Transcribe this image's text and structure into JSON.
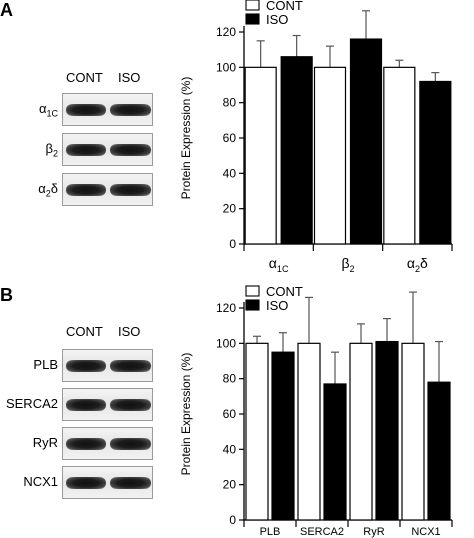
{
  "panels": [
    {
      "letter": "A",
      "blot": {
        "lanes": [
          "CONT",
          "ISO"
        ],
        "proteins": [
          {
            "base": "α",
            "sub": "1C"
          },
          {
            "base": "β",
            "sub": "2"
          },
          {
            "base": "α",
            "sub": "2",
            "post": "δ"
          }
        ]
      }
    },
    {
      "letter": "B",
      "blot": {
        "lanes": [
          "CONT",
          "ISO"
        ],
        "proteins": [
          {
            "base": "PLB"
          },
          {
            "base": "SERCA2"
          },
          {
            "base": "RyR"
          },
          {
            "base": "NCX1"
          }
        ]
      }
    }
  ],
  "chart_data": [
    {
      "type": "bar",
      "ylabel": "Protein Expression (%)",
      "ylim": [
        0,
        120
      ],
      "yticks": [
        0,
        20,
        40,
        60,
        80,
        100,
        120
      ],
      "legend_position": "top-left",
      "categories": [
        {
          "base": "α",
          "sub": "1C"
        },
        {
          "base": "β",
          "sub": "2"
        },
        {
          "base": "α",
          "sub": "2",
          "post": "δ"
        }
      ],
      "series": [
        {
          "name": "CONT",
          "color": "#ffffff",
          "values": [
            100,
            100,
            100
          ],
          "errors": [
            15,
            12,
            4
          ]
        },
        {
          "name": "ISO",
          "color": "#000000",
          "values": [
            106,
            116,
            92
          ],
          "errors": [
            12,
            16,
            5
          ]
        }
      ]
    },
    {
      "type": "bar",
      "ylabel": "Protein Expression (%)",
      "ylim": [
        0,
        120
      ],
      "yticks": [
        0,
        20,
        40,
        60,
        80,
        100,
        120
      ],
      "legend_position": "top-left",
      "categories": [
        {
          "base": "PLB"
        },
        {
          "base": "SERCA2"
        },
        {
          "base": "RyR"
        },
        {
          "base": "NCX1"
        }
      ],
      "series": [
        {
          "name": "CONT",
          "color": "#ffffff",
          "values": [
            100,
            100,
            100,
            100
          ],
          "errors": [
            4,
            26,
            11,
            29
          ]
        },
        {
          "name": "ISO",
          "color": "#000000",
          "values": [
            95,
            77,
            101,
            78
          ],
          "errors": [
            11,
            18,
            13,
            23
          ]
        }
      ]
    }
  ]
}
